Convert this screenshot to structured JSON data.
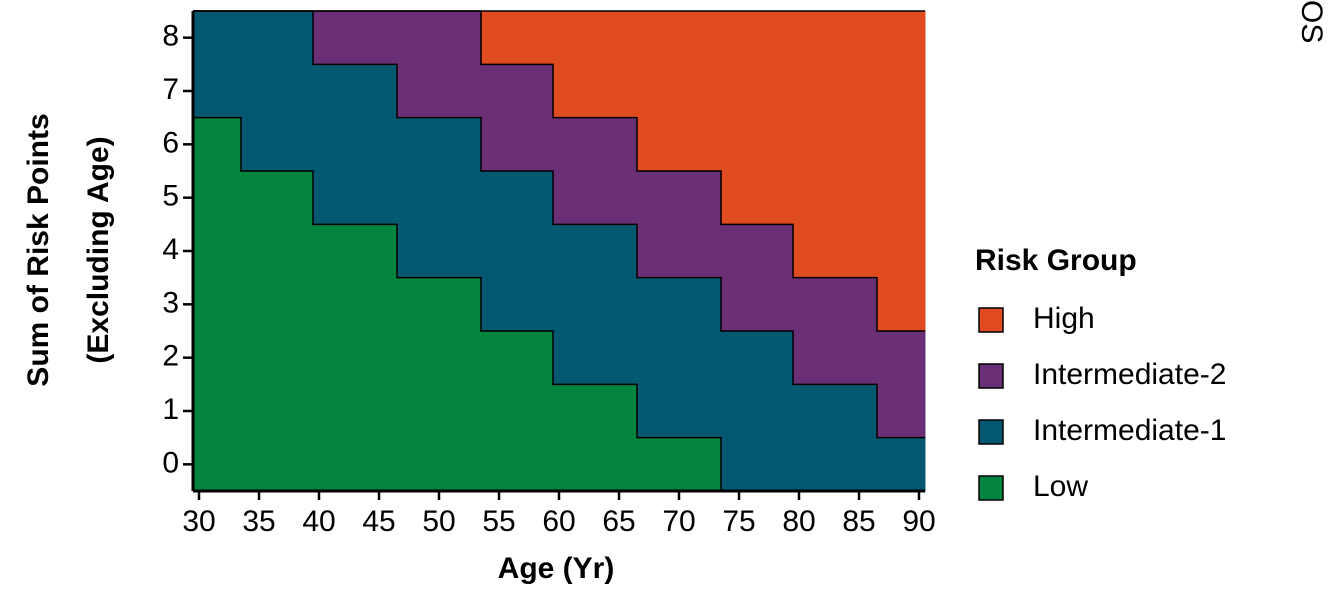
{
  "chart_data": {
    "type": "step-region",
    "x_label": "Age (Yr)",
    "y_label_lines": [
      "Sum of Risk Points",
      "(Excluding Age)"
    ],
    "legend_title": "Risk Group",
    "side_label": "OS",
    "x_edges": [
      29.5,
      33.5,
      39.5,
      46.5,
      53.5,
      59.5,
      66.5,
      73.5,
      79.5,
      86.5,
      90.5
    ],
    "series": [
      {
        "name": "High",
        "color": "#e04b1f",
        "values": [
          8.5,
          8.5,
          8.5,
          8.5,
          8.5,
          8.5,
          8.5,
          8.5,
          8.5,
          8.5
        ]
      },
      {
        "name": "Intermediate-2",
        "color": "#6a2f74",
        "values": [
          8.5,
          8.5,
          8.5,
          8.5,
          7.5,
          6.5,
          5.5,
          4.5,
          3.5,
          2.5
        ]
      },
      {
        "name": "Intermediate-1",
        "color": "#045870",
        "values": [
          8.5,
          8.5,
          7.5,
          6.5,
          5.5,
          4.5,
          3.5,
          2.5,
          1.5,
          0.5
        ]
      },
      {
        "name": "Low",
        "color": "#03843e",
        "values": [
          6.5,
          5.5,
          4.5,
          3.5,
          2.5,
          1.5,
          0.5,
          -0.5,
          -0.5,
          -0.5
        ]
      }
    ],
    "xlim": [
      29.5,
      90.5
    ],
    "ylim": [
      -0.5,
      8.5
    ],
    "xticks": [
      30,
      35,
      40,
      45,
      50,
      55,
      60,
      65,
      70,
      75,
      80,
      85,
      90
    ],
    "yticks": [
      0,
      1,
      2,
      3,
      4,
      5,
      6,
      7,
      8
    ]
  }
}
